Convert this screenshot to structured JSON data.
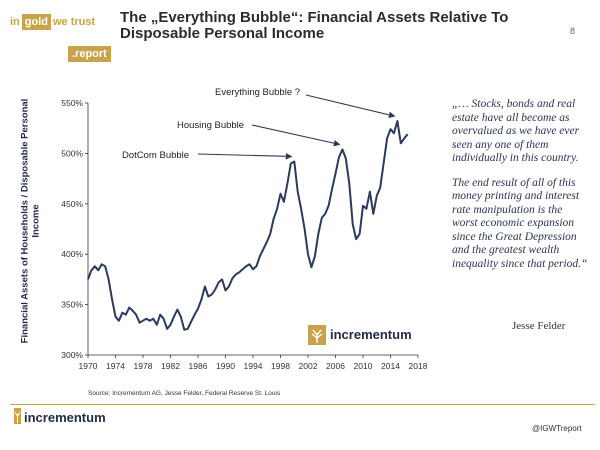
{
  "logo": {
    "in": "in",
    "gold": "gold",
    "we_trust": "we trust",
    "report": ".report"
  },
  "header": {
    "title_line1": "The „Everything Bubble“: Financial Assets Relative To",
    "title_line2": "Disposable Personal Income",
    "page_number": "8"
  },
  "quote": {
    "para1": "„… Stocks, bonds and real estate have all become as overvalued as we have ever seen any one of them individually in this country.",
    "para2": "The end result of all of this money printing and interest rate manipulation is the worst economic expansion since the Great Depression and the greatest wealth inequality since that period.“",
    "author": "Jesse Felder"
  },
  "source": "Source: Incrementum AG, Jesse Felder, Federal Reserve St. Louis",
  "footer": {
    "brand": "incrementum",
    "handle": "@IGWTreport"
  },
  "watermark": {
    "brand": "incrementum"
  },
  "colors": {
    "line": "#2b3a5c",
    "gold": "#c9a24a",
    "axis": "#333333"
  },
  "chart_data": {
    "type": "line",
    "title": "",
    "xlabel": "",
    "ylabel": "Financial Assets of Households / Disposable Personal Income",
    "xlim": [
      1970,
      2018
    ],
    "ylim": [
      300,
      550
    ],
    "x_ticks": [
      1970,
      1974,
      1978,
      1982,
      1986,
      1990,
      1994,
      1998,
      2002,
      2006,
      2010,
      2014,
      2018
    ],
    "y_ticks": [
      300,
      350,
      400,
      450,
      500,
      550
    ],
    "y_tick_labels": [
      "300%",
      "350%",
      "400%",
      "450%",
      "500%",
      "550%"
    ],
    "grid": false,
    "series": [
      {
        "name": "",
        "points": [
          [
            1970.0,
            375
          ],
          [
            1970.5,
            384
          ],
          [
            1971.0,
            388
          ],
          [
            1971.5,
            384
          ],
          [
            1972.0,
            390
          ],
          [
            1972.5,
            388
          ],
          [
            1973.0,
            375
          ],
          [
            1973.5,
            355
          ],
          [
            1974.0,
            338
          ],
          [
            1974.5,
            334
          ],
          [
            1975.0,
            342
          ],
          [
            1975.5,
            340
          ],
          [
            1976.0,
            347
          ],
          [
            1976.5,
            344
          ],
          [
            1977.0,
            340
          ],
          [
            1977.5,
            332
          ],
          [
            1978.0,
            334
          ],
          [
            1978.5,
            336
          ],
          [
            1979.0,
            334
          ],
          [
            1979.5,
            336
          ],
          [
            1980.0,
            330
          ],
          [
            1980.5,
            340
          ],
          [
            1981.0,
            336
          ],
          [
            1981.5,
            326
          ],
          [
            1982.0,
            330
          ],
          [
            1982.5,
            338
          ],
          [
            1983.0,
            345
          ],
          [
            1983.5,
            338
          ],
          [
            1984.0,
            325
          ],
          [
            1984.5,
            326
          ],
          [
            1985.0,
            333
          ],
          [
            1985.5,
            340
          ],
          [
            1986.0,
            346
          ],
          [
            1986.5,
            355
          ],
          [
            1987.0,
            368
          ],
          [
            1987.5,
            358
          ],
          [
            1988.0,
            360
          ],
          [
            1988.5,
            365
          ],
          [
            1989.0,
            372
          ],
          [
            1989.5,
            375
          ],
          [
            1990.0,
            364
          ],
          [
            1990.5,
            368
          ],
          [
            1991.0,
            376
          ],
          [
            1991.5,
            380
          ],
          [
            1992.0,
            382
          ],
          [
            1992.5,
            385
          ],
          [
            1993.0,
            388
          ],
          [
            1993.5,
            390
          ],
          [
            1994.0,
            385
          ],
          [
            1994.5,
            388
          ],
          [
            1995.0,
            398
          ],
          [
            1995.5,
            405
          ],
          [
            1996.0,
            412
          ],
          [
            1996.5,
            420
          ],
          [
            1997.0,
            435
          ],
          [
            1997.5,
            445
          ],
          [
            1998.0,
            460
          ],
          [
            1998.5,
            452
          ],
          [
            1999.0,
            470
          ],
          [
            1999.5,
            490
          ],
          [
            2000.0,
            492
          ],
          [
            2000.5,
            462
          ],
          [
            2001.0,
            445
          ],
          [
            2001.5,
            425
          ],
          [
            2002.0,
            400
          ],
          [
            2002.5,
            387
          ],
          [
            2003.0,
            398
          ],
          [
            2003.5,
            420
          ],
          [
            2004.0,
            436
          ],
          [
            2004.5,
            440
          ],
          [
            2005.0,
            448
          ],
          [
            2005.5,
            465
          ],
          [
            2006.0,
            480
          ],
          [
            2006.5,
            496
          ],
          [
            2007.0,
            504
          ],
          [
            2007.5,
            495
          ],
          [
            2008.0,
            470
          ],
          [
            2008.5,
            430
          ],
          [
            2009.0,
            415
          ],
          [
            2009.5,
            420
          ],
          [
            2010.0,
            448
          ],
          [
            2010.5,
            445
          ],
          [
            2011.0,
            462
          ],
          [
            2011.5,
            440
          ],
          [
            2012.0,
            458
          ],
          [
            2012.5,
            466
          ],
          [
            2013.0,
            490
          ],
          [
            2013.5,
            515
          ],
          [
            2014.0,
            524
          ],
          [
            2014.5,
            520
          ],
          [
            2015.0,
            532
          ],
          [
            2015.5,
            510
          ],
          [
            2016.0,
            515
          ],
          [
            2016.5,
            519
          ]
        ]
      }
    ],
    "annotations": [
      {
        "text": "DotCom Bubble",
        "x": 2000.0,
        "y": 492
      },
      {
        "text": "Housing Bubble",
        "x": 2007.0,
        "y": 504
      },
      {
        "text": "Everything Bubble ?",
        "x": 2015.0,
        "y": 532
      }
    ]
  }
}
